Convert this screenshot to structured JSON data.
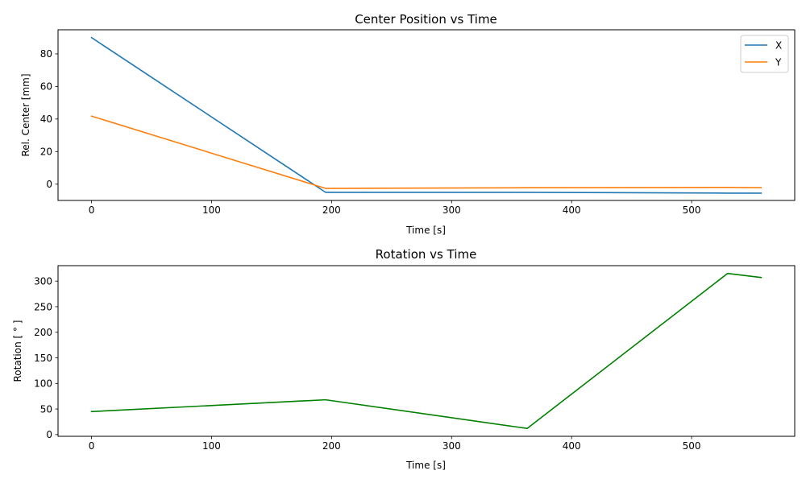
{
  "chart_data": [
    {
      "type": "line",
      "title": "Center Position vs Time",
      "xlabel": "Time [s]",
      "ylabel": "Rel. Center [mm]",
      "xlim": [
        -27.9,
        585.9
      ],
      "ylim": [
        -10.0,
        94.8
      ],
      "xticks": [
        0,
        100,
        200,
        300,
        400,
        500
      ],
      "yticks": [
        0,
        20,
        40,
        60,
        80
      ],
      "grid": false,
      "legend": "top-right",
      "series": [
        {
          "name": "X",
          "color": "#1f77b4",
          "x": [
            0,
            195,
            363,
            530,
            558
          ],
          "y": [
            90,
            -5,
            -5,
            -5.5,
            -5.5
          ]
        },
        {
          "name": "Y",
          "color": "#ff7f0e",
          "x": [
            0,
            195,
            363,
            530,
            558
          ],
          "y": [
            41.8,
            -2.6,
            -2.2,
            -2.0,
            -2.2
          ]
        }
      ]
    },
    {
      "type": "line",
      "title": "Rotation vs Time",
      "xlabel": "Time [s]",
      "ylabel": "Rotation [ ° ]",
      "xlim": [
        -27.9,
        585.9
      ],
      "ylim": [
        -3.4,
        330.2
      ],
      "xticks": [
        0,
        100,
        200,
        300,
        400,
        500
      ],
      "yticks": [
        0,
        50,
        100,
        150,
        200,
        250,
        300
      ],
      "grid": false,
      "series": [
        {
          "color": "#008000",
          "x": [
            0,
            195,
            363,
            530,
            558
          ],
          "y": [
            45,
            68,
            12,
            315,
            307
          ]
        }
      ]
    }
  ]
}
